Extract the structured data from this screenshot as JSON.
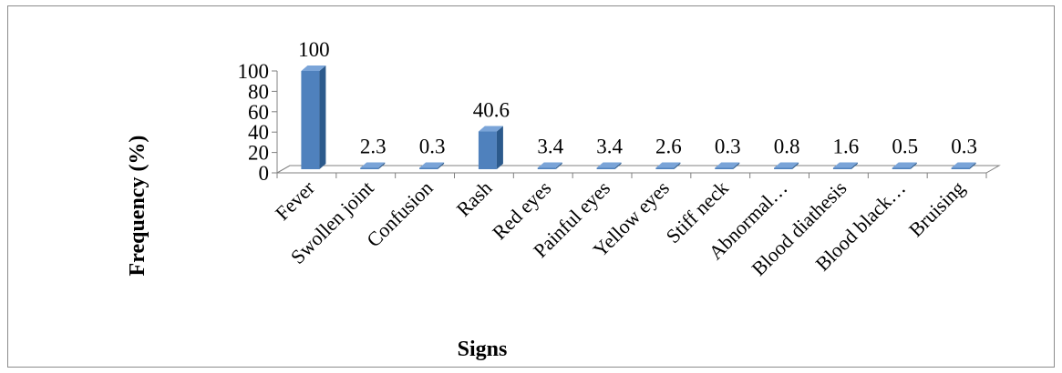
{
  "chart_data": {
    "type": "bar",
    "title": "",
    "xlabel": "Signs",
    "ylabel": "Frequency (%)",
    "categories": [
      "Fever",
      "Swollen joint",
      "Confusion",
      "Rash",
      "Red eyes",
      "Painful eyes",
      "Yellow eyes",
      "Stiff neck",
      "Abnormal…",
      "Blood diathesis",
      "Blood black…",
      "Bruising"
    ],
    "values": [
      100,
      2.3,
      0.3,
      40.6,
      3.4,
      3.4,
      2.6,
      0.3,
      0.8,
      1.6,
      0.5,
      0.3
    ],
    "data_labels": [
      "100",
      "2.3",
      "0.3",
      "40.6",
      "3.4",
      "3.4",
      "2.6",
      "0.3",
      "0.8",
      "1.6",
      "0.5",
      "0.3"
    ],
    "yticks": [
      "0",
      "20",
      "40",
      "60",
      "80",
      "100"
    ],
    "ylim": [
      0,
      100
    ],
    "grid": false,
    "legend": "none",
    "style": "3d-column",
    "colors": {
      "bar_front": "#4f81bd",
      "bar_side": "#2c5a8c",
      "bar_top": "#7aa4d8",
      "floor": "#ffffff",
      "axis": "#808080"
    }
  }
}
